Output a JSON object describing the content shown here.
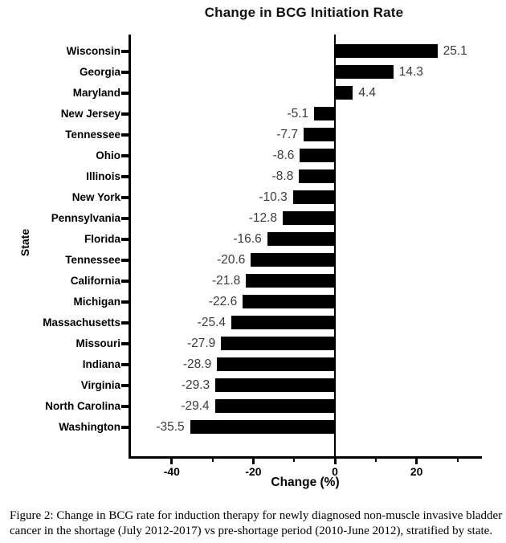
{
  "figure": {
    "caption": "Figure 2: Change in BCG rate for induction therapy for newly diagnosed non-muscle invasive bladder cancer in the shortage (July 2012-2017) vs pre-shortage period (2010-June 2012), stratified by state."
  },
  "chart_data": {
    "type": "bar",
    "orientation": "horizontal",
    "title": "Change in BCG Initiation Rate",
    "xlabel": "Change (%)",
    "ylabel": "State",
    "categories": [
      "Wisconsin",
      "Georgia",
      "Maryland",
      "New Jersey",
      "Tennessee",
      "Ohio",
      "Illinois",
      "New York",
      "Pennsylvania",
      "Florida",
      "Tennessee",
      "California",
      "Michigan",
      "Massachusetts",
      "Missouri",
      "Indiana",
      "Virginia",
      "North Carolina",
      "Washington"
    ],
    "values": [
      25.1,
      14.3,
      4.4,
      -5.1,
      -7.7,
      -8.6,
      -8.8,
      -10.3,
      -12.8,
      -16.6,
      -20.6,
      -21.8,
      -22.6,
      -25.4,
      -27.9,
      -28.9,
      -29.3,
      -29.4,
      -35.5
    ],
    "value_labels": [
      "25.1",
      "14.3",
      "4.4",
      "-5.1",
      "-7.7",
      "-8.6",
      "-8.8",
      "-10.3",
      "-12.8",
      "-16.6",
      "-20.6",
      "-21.8",
      "-22.6",
      "-25.4",
      "-27.9",
      "-28.9",
      "-29.3",
      "-29.4",
      "-35.5"
    ],
    "xlim": [
      -50,
      36
    ],
    "x_major_ticks": [
      -40,
      -20,
      0,
      20
    ],
    "x_minor_ticks": [
      -30,
      -10,
      10,
      30
    ],
    "grid": false,
    "legend": "none",
    "bar_color": "#000000",
    "value_label_color": "#3c3c3c",
    "axis_color": "#000000"
  }
}
